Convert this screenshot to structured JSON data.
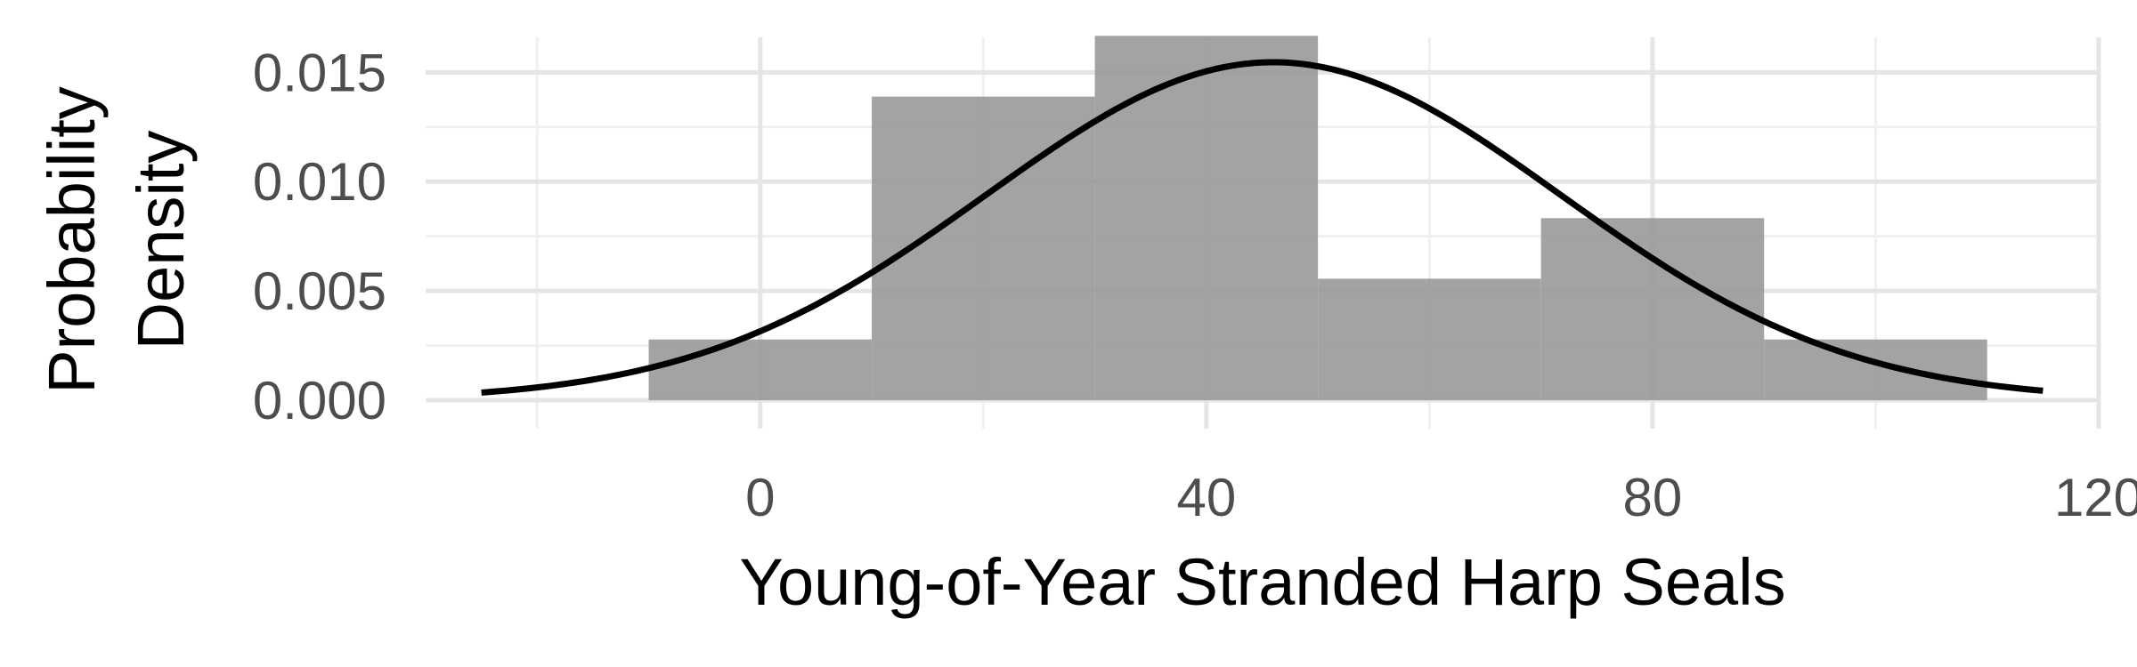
{
  "chart_data": {
    "type": "bar",
    "subtype": "histogram-with-normal-density-curve",
    "title": "",
    "xlabel": "Young-of-Year Stranded Harp Seals",
    "ylabel_lines": [
      "Probability",
      "Density"
    ],
    "xlim": [
      -30,
      120
    ],
    "ylim": [
      -0.0013,
      0.0166
    ],
    "x_ticks": [
      {
        "value": 0,
        "label": "0"
      },
      {
        "value": 40,
        "label": "40"
      },
      {
        "value": 80,
        "label": "80"
      },
      {
        "value": 120,
        "label": "120"
      }
    ],
    "y_ticks": [
      {
        "value": 0.0,
        "label": "0.000"
      },
      {
        "value": 0.005,
        "label": "0.005"
      },
      {
        "value": 0.01,
        "label": "0.010"
      },
      {
        "value": 0.015,
        "label": "0.015"
      }
    ],
    "x_minor_gridlines": [
      -20,
      20,
      60,
      100
    ],
    "y_minor_gridlines": [
      0.0025,
      0.0075,
      0.0125
    ],
    "grid": true,
    "legend": "none",
    "bins": [
      {
        "start": -10,
        "end": 10,
        "density": 0.00278
      },
      {
        "start": 10,
        "end": 30,
        "density": 0.01389
      },
      {
        "start": 30,
        "end": 50,
        "density": 0.01667
      },
      {
        "start": 50,
        "end": 70,
        "density": 0.00556
      },
      {
        "start": 70,
        "end": 90,
        "density": 0.00833
      },
      {
        "start": 90,
        "end": 110,
        "density": 0.00278
      }
    ],
    "density_curve": {
      "distribution": "normal",
      "mean": 46,
      "sd": 25.8,
      "x_range": [
        -25,
        115
      ]
    },
    "colors": {
      "bar_fill": "#999999",
      "bar_opacity": 0.9,
      "curve": "#000000",
      "grid_major": "#e5e5e5",
      "grid_minor": "#f0f0f0"
    }
  }
}
